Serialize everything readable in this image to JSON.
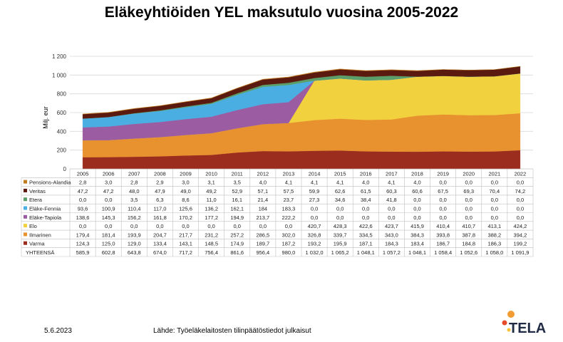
{
  "page": {
    "title": "Eläkeyhtiöiden YEL maksutulo vuosina 2005-2022",
    "date": "5.6.2023",
    "source": "Lähde: Työeläkelaitosten tilinpäätöstiedot julkaisut",
    "logo_text": "TELA"
  },
  "chart_data": {
    "type": "area",
    "stacked": true,
    "title": "Eläkeyhtiöiden YEL maksutulo vuosina 2005-2022",
    "ylabel": "Milj. eur",
    "ylim": [
      0,
      1200
    ],
    "yticks": [
      0,
      200,
      400,
      600,
      800,
      1000,
      1200
    ],
    "ytick_labels": [
      "0",
      "200",
      "400",
      "600",
      "800",
      "1 000",
      "1 200"
    ],
    "grid": true,
    "legend": "data-table-left",
    "categories": [
      "2005",
      "2006",
      "2007",
      "2008",
      "2009",
      "2010",
      "2011",
      "2012",
      "2013",
      "2014",
      "2015",
      "2016",
      "2017",
      "2018",
      "2019",
      "2020",
      "2021",
      "2022"
    ],
    "series": [
      {
        "name": "Varma",
        "color": "#9b2d1f",
        "values": [
          124.3,
          125.0,
          129.0,
          133.4,
          143.1,
          148.5,
          174.9,
          189.7,
          187.2,
          193.2,
          195.9,
          187.1,
          184.3,
          183.4,
          186.7,
          184.8,
          186.3,
          199.2
        ],
        "labels": [
          "124,3",
          "125,0",
          "129,0",
          "133,4",
          "143,1",
          "148,5",
          "174,9",
          "189,7",
          "187,2",
          "193,2",
          "195,9",
          "187,1",
          "184,3",
          "183,4",
          "186,7",
          "184,8",
          "186,3",
          "199,2"
        ]
      },
      {
        "name": "Ilmarinen",
        "color": "#e8912f",
        "values": [
          179.4,
          181.4,
          193.9,
          204.7,
          217.7,
          231.2,
          257.2,
          286.5,
          302.0,
          326.8,
          339.7,
          334.5,
          343.0,
          384.3,
          393.8,
          387.8,
          388.2,
          394.2
        ],
        "labels": [
          "179,4",
          "181,4",
          "193,9",
          "204,7",
          "217,7",
          "231,2",
          "257,2",
          "286,5",
          "302,0",
          "326,8",
          "339,7",
          "334,5",
          "343,0",
          "384,3",
          "393,8",
          "387,8",
          "388,2",
          "394,2"
        ]
      },
      {
        "name": "Elo",
        "color": "#f1d13e",
        "values": [
          0,
          0,
          0,
          0,
          0,
          0,
          0,
          0,
          0,
          420.7,
          428.3,
          422.6,
          423.7,
          415.9,
          410.4,
          410.7,
          413.1,
          424.2
        ],
        "labels": [
          "0,0",
          "0,0",
          "0,0",
          "0,0",
          "0,0",
          "0,0",
          "0,0",
          "0,0",
          "0,0",
          "420,7",
          "428,3",
          "422,6",
          "423,7",
          "415,9",
          "410,4",
          "410,7",
          "413,1",
          "424,2"
        ]
      },
      {
        "name": "Eläke-Tapiola",
        "color": "#9b5ca1",
        "values": [
          138.6,
          145.3,
          156.2,
          161.8,
          170.2,
          177.2,
          194.9,
          213.7,
          222.2,
          0,
          0,
          0,
          0,
          0,
          0,
          0,
          0,
          0
        ],
        "labels": [
          "138,6",
          "145,3",
          "156,2",
          "161,8",
          "170,2",
          "177,2",
          "194,9",
          "213,7",
          "222,2",
          "0,0",
          "0,0",
          "0,0",
          "0,0",
          "0,0",
          "0,0",
          "0,0",
          "0,0",
          "0,0"
        ]
      },
      {
        "name": "Eläke-Fennia",
        "color": "#4aaee2",
        "values": [
          93.6,
          100.9,
          110.4,
          117.0,
          125.6,
          136.2,
          162.1,
          184,
          183.3,
          0,
          0,
          0,
          0,
          0,
          0,
          0,
          0,
          0
        ],
        "labels": [
          "93,6",
          "100,9",
          "110,4",
          "117,0",
          "125,6",
          "136,2",
          "162,1",
          "184",
          "183,3",
          "0,0",
          "0,0",
          "0,0",
          "0,0",
          "0,0",
          "0,0",
          "0,0",
          "0,0",
          "0,0"
        ]
      },
      {
        "name": "Etera",
        "color": "#5c9e6a",
        "values": [
          0,
          0,
          3.5,
          6.3,
          8.6,
          11.0,
          16.1,
          21.4,
          23.7,
          27.3,
          34.6,
          38.4,
          41.8,
          0,
          0,
          0,
          0,
          0
        ],
        "labels": [
          "0,0",
          "0,0",
          "3,5",
          "6,3",
          "8,6",
          "11,0",
          "16,1",
          "21,4",
          "23,7",
          "27,3",
          "34,6",
          "38,4",
          "41,8",
          "0,0",
          "0,0",
          "0,0",
          "0,0",
          "0,0"
        ]
      },
      {
        "name": "Veritas",
        "color": "#5a1a0f",
        "values": [
          47.2,
          47.2,
          48.0,
          47.9,
          49.0,
          49.2,
          52.9,
          57.1,
          57.5,
          59.9,
          62.6,
          61.5,
          60.3,
          60.6,
          67.5,
          69.3,
          70.4,
          74.2
        ],
        "labels": [
          "47,2",
          "47,2",
          "48,0",
          "47,9",
          "49,0",
          "49,2",
          "52,9",
          "57,1",
          "57,5",
          "59,9",
          "62,6",
          "61,5",
          "60,3",
          "60,6",
          "67,5",
          "69,3",
          "70,4",
          "74,2"
        ]
      },
      {
        "name": "Pensions-Alandia",
        "color": "#c17b20",
        "values": [
          2.8,
          3.0,
          2.8,
          2.9,
          3.0,
          3.1,
          3.5,
          4.0,
          4.1,
          4.1,
          4.1,
          4.0,
          4.1,
          4.0,
          0,
          0,
          0,
          0
        ],
        "labels": [
          "2,8",
          "3,0",
          "2,8",
          "2,9",
          "3,0",
          "3,1",
          "3,5",
          "4,0",
          "4,1",
          "4,1",
          "4,1",
          "4,0",
          "4,1",
          "4,0",
          "0,0",
          "0,0",
          "0,0",
          "0,0"
        ]
      }
    ],
    "table_row_order": [
      "Pensions-Alandia",
      "Veritas",
      "Etera",
      "Eläke-Fennia",
      "Eläke-Tapiola",
      "Elo",
      "Ilmarinen",
      "Varma"
    ],
    "total": {
      "name": "YHTEENSÄ",
      "labels": [
        "585,9",
        "602,8",
        "643,8",
        "674,0",
        "717,2",
        "756,4",
        "861,6",
        "956,4",
        "980,0",
        "1 032,0",
        "1 065,2",
        "1 048,1",
        "1 057,2",
        "1 048,1",
        "1 058,4",
        "1 052,6",
        "1 058,0",
        "1 091,9"
      ]
    }
  }
}
